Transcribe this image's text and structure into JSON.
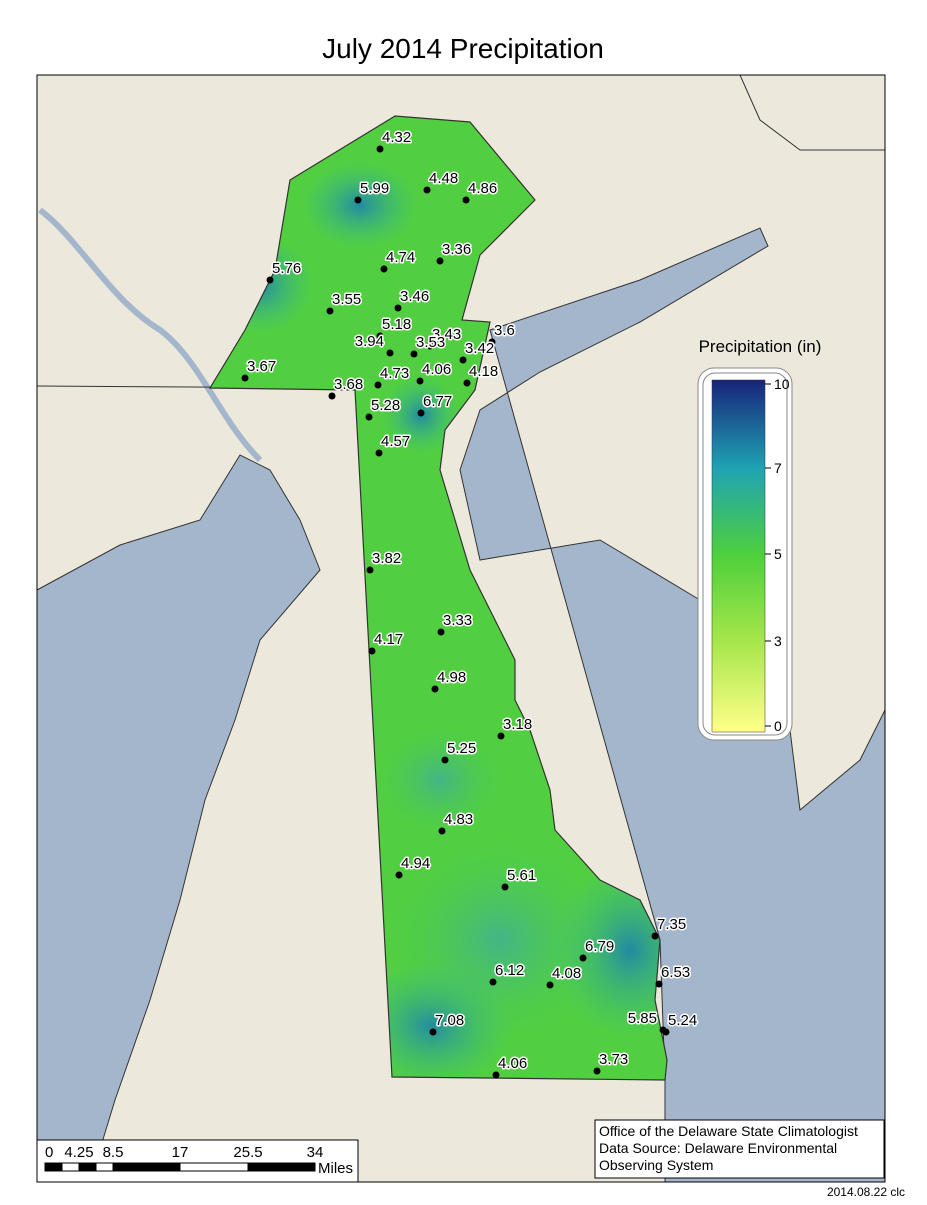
{
  "title": "July 2014 Precipitation",
  "stations": [
    "4.32",
    "5.99",
    "4.48",
    "4.86",
    "4.74",
    "3.36",
    "5.76",
    "3.55",
    "3.46",
    "5.18",
    "3.43",
    "3.6",
    "3.94",
    "3.53",
    "3.42",
    "3.67",
    "4.73",
    "4.06",
    "4.18",
    "3.68",
    "5.28",
    "6.77",
    "4.57",
    "3.82",
    "3.33",
    "4.17",
    "4.98",
    "3.18",
    "5.25",
    "4.83",
    "4.94",
    "5.61",
    "7.35",
    "6.79",
    "6.12",
    "4.08",
    "6.53",
    "5.85",
    "5.24",
    "7.08",
    "4.06",
    "3.73"
  ],
  "legend": {
    "title": "Precipitation (in)",
    "ticks": [
      "10",
      "7",
      "5",
      "3",
      "0"
    ]
  },
  "scale_bar": {
    "labels": [
      "0",
      "4.25",
      "8.5",
      "17",
      "25.5",
      "34"
    ],
    "unit": "Miles"
  },
  "credit": {
    "lines": [
      "Office of the Delaware State Climatologist",
      "Data Source: Delaware Environmental",
      "Observing System"
    ]
  },
  "stamp": "2014.08.22 clc"
}
